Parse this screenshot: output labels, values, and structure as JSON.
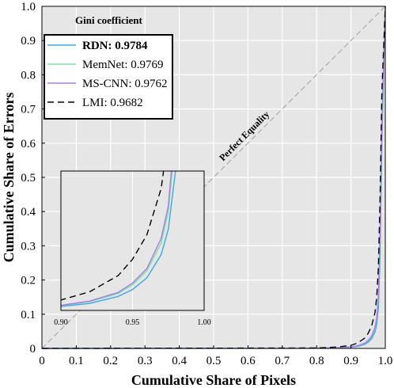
{
  "chart_data": {
    "type": "line",
    "xlabel": "Cumulative Share of Pixels",
    "ylabel": "Cumulative Share of Errors",
    "xlim": [
      0,
      1
    ],
    "ylim": [
      0,
      1
    ],
    "xticks": [
      "0",
      "0.1",
      "0.2",
      "0.3",
      "0.4",
      "0.5",
      "0.6",
      "0.7",
      "0.8",
      "0.9",
      "1.0"
    ],
    "yticks": [
      "0",
      "0.1",
      "0.2",
      "0.3",
      "0.4",
      "0.5",
      "0.6",
      "0.7",
      "0.8",
      "0.9",
      "1.0"
    ],
    "grid": true,
    "legend": {
      "title": "Gini coefficient",
      "placement": "top-left"
    },
    "annotation": "Perfect Equality",
    "series": [
      {
        "name": "RDN: 0.9784",
        "color": "#3aa8e8",
        "style": "solid",
        "bold": true,
        "x": [
          0,
          0.8,
          0.86,
          0.9,
          0.92,
          0.94,
          0.95,
          0.96,
          0.97,
          0.975,
          0.98,
          0.985,
          0.99,
          1.0
        ],
        "y": [
          0,
          0.0005,
          0.0015,
          0.0035,
          0.006,
          0.012,
          0.018,
          0.028,
          0.048,
          0.07,
          0.12,
          0.28,
          0.6,
          1.0
        ]
      },
      {
        "name": "MemNet: 0.9769",
        "color": "#7fe0a8",
        "style": "solid",
        "bold": false,
        "x": [
          0,
          0.8,
          0.86,
          0.9,
          0.92,
          0.94,
          0.95,
          0.96,
          0.97,
          0.975,
          0.98,
          0.985,
          0.99,
          1.0
        ],
        "y": [
          0,
          0.0006,
          0.0018,
          0.0042,
          0.0075,
          0.0145,
          0.022,
          0.034,
          0.058,
          0.085,
          0.15,
          0.33,
          0.64,
          1.0
        ]
      },
      {
        "name": "MS-CNN: 0.9762",
        "color": "#a77be0",
        "style": "solid",
        "bold": false,
        "x": [
          0,
          0.8,
          0.86,
          0.9,
          0.92,
          0.94,
          0.95,
          0.96,
          0.97,
          0.975,
          0.98,
          0.985,
          0.99,
          1.0
        ],
        "y": [
          0,
          0.0006,
          0.0019,
          0.0044,
          0.008,
          0.0155,
          0.0235,
          0.036,
          0.062,
          0.09,
          0.16,
          0.35,
          0.66,
          1.0
        ]
      },
      {
        "name": "LMI: 0.9682",
        "color": "#000000",
        "style": "dashed",
        "bold": false,
        "x": [
          0,
          0.8,
          0.86,
          0.9,
          0.92,
          0.94,
          0.95,
          0.96,
          0.97,
          0.975,
          0.98,
          0.985,
          0.99,
          1.0
        ],
        "y": [
          0,
          0.0012,
          0.004,
          0.009,
          0.016,
          0.03,
          0.044,
          0.065,
          0.105,
          0.15,
          0.24,
          0.45,
          0.75,
          1.0
        ]
      }
    ],
    "inset": {
      "xlim": [
        0.9,
        1.0
      ],
      "ylim": [
        0,
        0.12
      ],
      "xticks": [
        "0.90",
        "0.95",
        "1.00"
      ]
    }
  }
}
